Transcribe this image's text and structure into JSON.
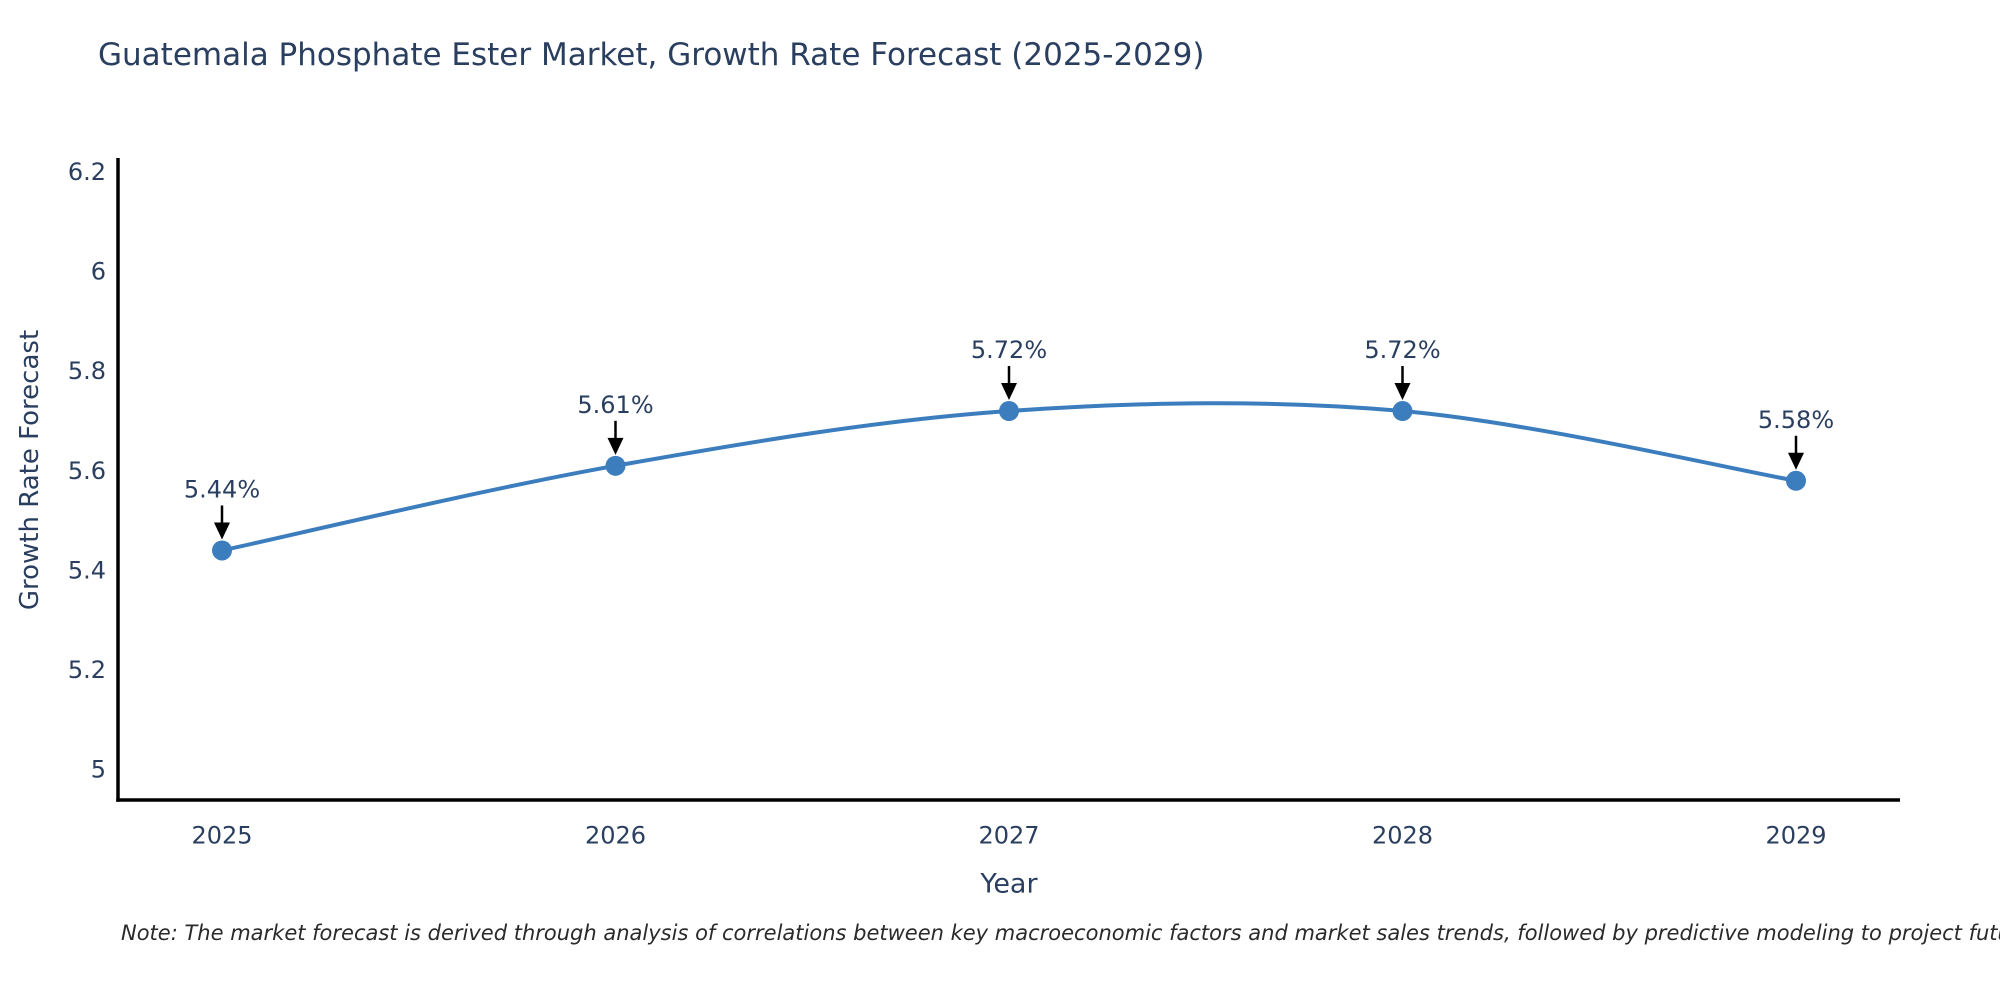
{
  "note": "Note: The market forecast is derived through analysis of correlations between key macroeconomic factors and market sales trends, followed by predictive modeling to project future sales",
  "chart_data": {
    "type": "line",
    "title": "Guatemala Phosphate Ester Market, Growth Rate Forecast (2025-2029)",
    "xlabel": "Year",
    "ylabel": "Growth Rate Forecast",
    "x": [
      "2025",
      "2026",
      "2027",
      "2028",
      "2029"
    ],
    "series": [
      {
        "name": "Growth Rate Forecast",
        "values": [
          5.44,
          5.61,
          5.72,
          5.72,
          5.58
        ],
        "point_labels": [
          "5.44%",
          "5.61%",
          "5.72%",
          "5.72%",
          "5.58%"
        ]
      }
    ],
    "line_shape": "spline",
    "markers": true,
    "grid": false,
    "legend_position": "none",
    "ylim": [
      5.0,
      6.2
    ],
    "yticks": [
      {
        "label": "6.2",
        "value": 6.2
      },
      {
        "label": "6",
        "value": 6.0
      },
      {
        "label": "5.8",
        "value": 5.8
      },
      {
        "label": "5.6",
        "value": 5.6
      },
      {
        "label": "5.4",
        "value": 5.4
      },
      {
        "label": "5.2",
        "value": 5.2
      },
      {
        "label": "5",
        "value": 5.0
      }
    ],
    "colors": {
      "line": "#3C7DBE",
      "marker": "#3C7DBE",
      "axis": "#000000",
      "text": "#2a3f5f",
      "annotation_text": "#2a3f5f",
      "arrow": "#000000",
      "background": "#ffffff"
    }
  }
}
